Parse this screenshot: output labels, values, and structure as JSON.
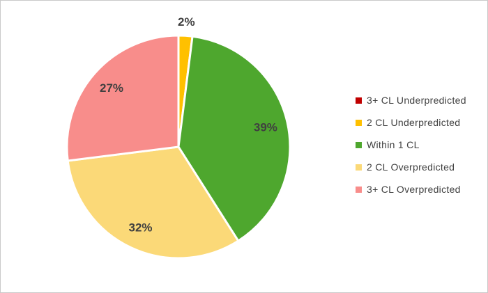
{
  "frame": {
    "background": "#FFFFFF",
    "border_color": "#C9C9C9"
  },
  "colors": {
    "data_label": "#404040",
    "legend_text": "#404040",
    "slice_border": "#FFFFFF"
  },
  "chart_data": {
    "type": "pie",
    "categories": [
      "3+ CL Underpredicted",
      "2 CL Underpredicted",
      "Within 1 CL",
      "2 CL Overpredicted",
      "3+ CL Overpredicted"
    ],
    "values": [
      0,
      2,
      39,
      32,
      27
    ],
    "colors": [
      "#C00000",
      "#FFC000",
      "#4EA72E",
      "#FBD978",
      "#F88D8B"
    ],
    "data_labels": [
      "",
      "2%",
      "39%",
      "32%",
      "27%"
    ],
    "start_angle_deg": 0,
    "direction": "clockwise",
    "legend_position": "right",
    "grid": false
  }
}
